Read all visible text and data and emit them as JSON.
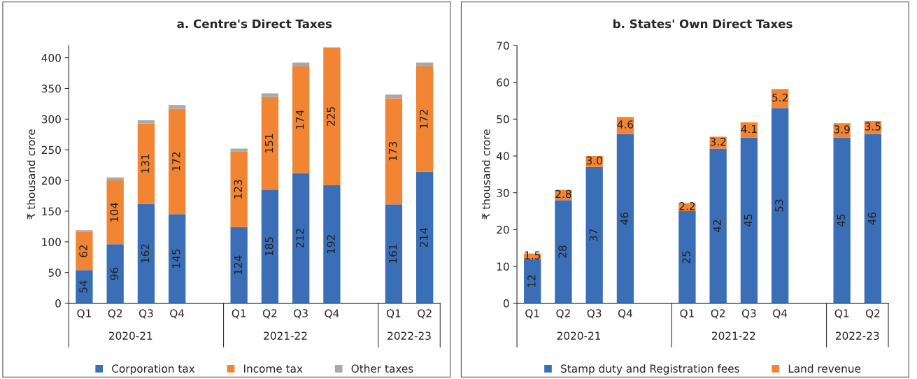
{
  "chart_data": [
    {
      "type": "bar",
      "title": "a. Centre's Direct Taxes",
      "ylabel": "₹ thousand crore",
      "stacked": true,
      "categories": [
        "Q1",
        "Q2",
        "Q3",
        "Q4",
        null,
        "Q1",
        "Q2",
        "Q3",
        "Q4",
        null,
        "Q1",
        "Q2"
      ],
      "series": [
        {
          "name": "Corporation tax",
          "color": "#3a6fb8",
          "values": [
            54,
            96,
            162,
            145,
            null,
            124,
            185,
            212,
            192,
            null,
            161,
            214
          ],
          "value_labels": [
            "54",
            "96",
            "162",
            "145",
            null,
            "124",
            "185",
            "212",
            "192",
            null,
            "161",
            "214"
          ]
        },
        {
          "name": "Income tax",
          "color": "#f28534",
          "values": [
            62,
            104,
            131,
            172,
            null,
            123,
            151,
            174,
            225,
            null,
            173,
            172
          ],
          "value_labels": [
            "62",
            "104",
            "131",
            "172",
            null,
            "123",
            "151",
            "174",
            "225",
            null,
            "173",
            "172"
          ]
        },
        {
          "name": "Other taxes",
          "color": "#a9a9ad",
          "values": [
            3,
            5,
            5,
            6,
            null,
            5,
            6,
            6,
            null,
            null,
            6,
            6
          ]
        }
      ],
      "annotations": [
        "2020-21",
        "2021-22",
        "2022-23"
      ],
      "ylim": [
        0,
        420
      ],
      "yticks": [
        0,
        50,
        100,
        150,
        200,
        250,
        300,
        350,
        400
      ],
      "grid": false,
      "legend": "bottom"
    },
    {
      "type": "bar",
      "title": "b. States' Own Direct Taxes",
      "ylabel": "₹ thousand crore",
      "stacked": true,
      "categories": [
        "Q1",
        "Q2",
        "Q3",
        "Q4",
        null,
        "Q1",
        "Q2",
        "Q3",
        "Q4",
        null,
        "Q1",
        "Q2"
      ],
      "series": [
        {
          "name": "Stamp duty and Registration fees",
          "color": "#3a6fb8",
          "values": [
            12,
            28,
            37,
            46,
            null,
            25,
            42,
            45,
            53,
            null,
            45,
            46
          ],
          "value_labels": [
            "12",
            "28",
            "37",
            "46",
            null,
            "25",
            "42",
            "45",
            "53",
            null,
            "45",
            "46"
          ]
        },
        {
          "name": "Land revenue",
          "color": "#f28534",
          "values": [
            1.5,
            2.8,
            3.0,
            4.6,
            null,
            2.2,
            3.2,
            4.1,
            5.2,
            null,
            3.9,
            3.5
          ],
          "value_labels": [
            "1.5",
            "2.8",
            "3.0",
            "4.6",
            null,
            "2.2",
            "3.2",
            "4.1",
            "5.2",
            null,
            "3.9",
            "3.5"
          ]
        }
      ],
      "annotations": [
        "2020-21",
        "2021-22",
        "2022-23"
      ],
      "ylim": [
        0,
        70
      ],
      "yticks": [
        0,
        10,
        20,
        30,
        40,
        50,
        60,
        70
      ],
      "grid": false,
      "legend": "bottom"
    }
  ]
}
